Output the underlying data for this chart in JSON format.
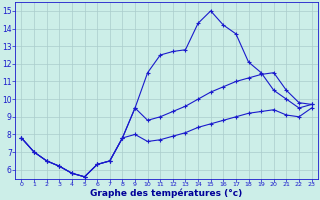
{
  "title": "Graphe des températures (°c)",
  "bg_color": "#cceee8",
  "grid_color": "#aacccc",
  "line_color": "#1a1acc",
  "xlim": [
    -0.5,
    23.5
  ],
  "ylim": [
    5.5,
    15.5
  ],
  "xticks": [
    0,
    1,
    2,
    3,
    4,
    5,
    6,
    7,
    8,
    9,
    10,
    11,
    12,
    13,
    14,
    15,
    16,
    17,
    18,
    19,
    20,
    21,
    22,
    23
  ],
  "yticks": [
    6,
    7,
    8,
    9,
    10,
    11,
    12,
    13,
    14,
    15
  ],
  "s1_x": [
    0,
    1,
    2,
    3,
    4,
    5,
    6,
    7,
    8,
    9,
    10,
    11,
    12,
    13,
    14,
    15,
    16,
    17,
    18,
    19,
    20,
    21,
    22,
    23
  ],
  "s1_y": [
    7.8,
    7.0,
    6.5,
    6.2,
    5.8,
    5.6,
    6.3,
    6.5,
    7.8,
    9.5,
    11.5,
    12.5,
    12.7,
    12.8,
    14.3,
    15.0,
    14.2,
    13.7,
    12.1,
    11.5,
    10.5,
    10.0,
    9.5,
    9.7
  ],
  "s2_x": [
    0,
    1,
    2,
    3,
    4,
    5,
    6,
    7,
    8,
    9,
    10,
    11,
    12,
    13,
    14,
    15,
    16,
    17,
    18,
    19,
    20,
    21,
    22,
    23
  ],
  "s2_y": [
    7.8,
    7.0,
    6.5,
    6.2,
    5.8,
    5.6,
    6.3,
    6.5,
    7.8,
    9.5,
    8.8,
    9.0,
    9.3,
    9.6,
    10.0,
    10.4,
    10.7,
    11.0,
    11.2,
    11.4,
    11.5,
    10.5,
    9.8,
    9.7
  ],
  "s3_x": [
    0,
    1,
    2,
    3,
    4,
    5,
    6,
    7,
    8,
    9,
    10,
    11,
    12,
    13,
    14,
    15,
    16,
    17,
    18,
    19,
    20,
    21,
    22,
    23
  ],
  "s3_y": [
    7.8,
    7.0,
    6.5,
    6.2,
    5.8,
    5.6,
    6.3,
    6.5,
    7.8,
    8.0,
    7.6,
    7.7,
    7.9,
    8.1,
    8.4,
    8.6,
    8.8,
    9.0,
    9.2,
    9.3,
    9.4,
    9.1,
    9.0,
    9.5
  ],
  "xlabel_color": "#000099",
  "xlabel_fontsize": 6.5,
  "tick_fontsize_x": 4.5,
  "tick_fontsize_y": 5.5
}
